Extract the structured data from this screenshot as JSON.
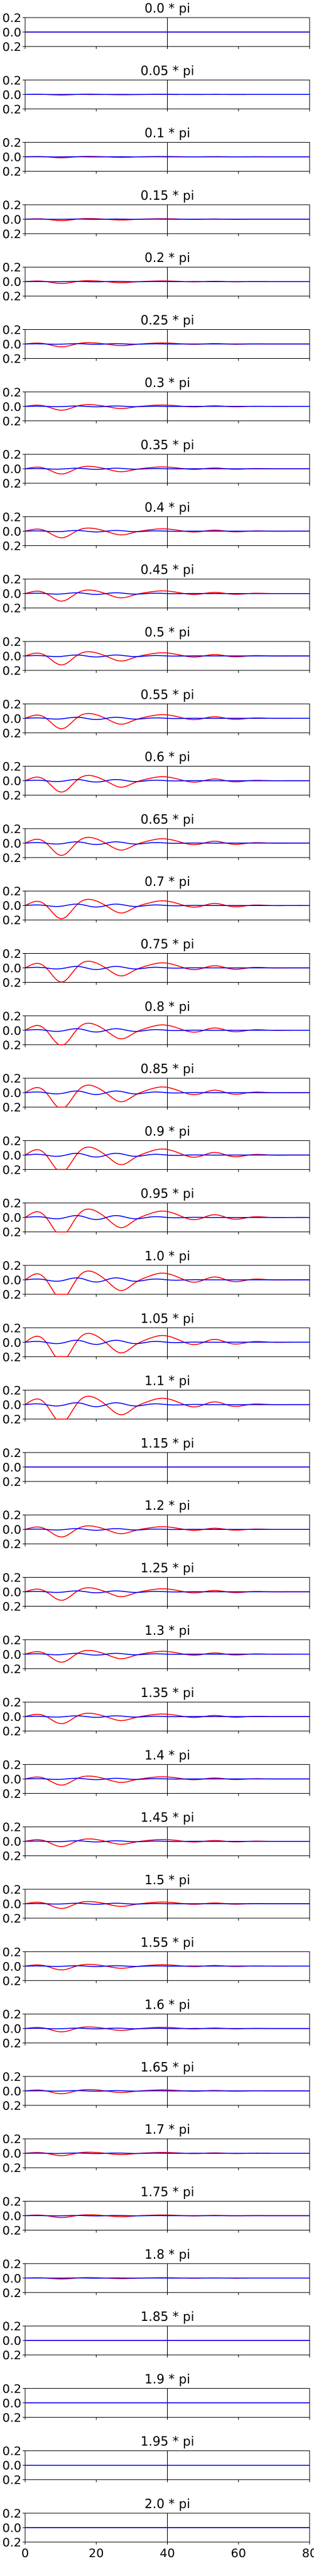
{
  "figure": {
    "x_ticks": [
      "0",
      "20",
      "40",
      "60",
      "80"
    ],
    "y_ticks": [
      "0.2",
      "0.0",
      "0.2"
    ],
    "colors": {
      "real": "#ff0000",
      "imag": "#0000ff",
      "axis": "#000000",
      "divider": "#000000"
    }
  },
  "chart_data": {
    "type": "line",
    "xlim": [
      0,
      80
    ],
    "ylim": [
      -0.2,
      0.2
    ],
    "grid": false,
    "legend": "none",
    "divider_x": 40,
    "subplots": [
      {
        "title": "0.0 * pi",
        "amp": 0.0
      },
      {
        "title": "0.05 * pi",
        "amp": 0.006
      },
      {
        "title": "0.1 * pi",
        "amp": 0.01
      },
      {
        "title": "0.15 * pi",
        "amp": 0.015
      },
      {
        "title": "0.2 * pi",
        "amp": 0.02
      },
      {
        "title": "0.25 * pi",
        "amp": 0.03
      },
      {
        "title": "0.3 * pi",
        "amp": 0.04
      },
      {
        "title": "0.35 * pi",
        "amp": 0.055
      },
      {
        "title": "0.4 * pi",
        "amp": 0.07
      },
      {
        "title": "0.45 * pi",
        "amp": 0.08
      },
      {
        "title": "0.5 * pi",
        "amp": 0.095
      },
      {
        "title": "0.55 * pi",
        "amp": 0.11
      },
      {
        "title": "0.6 * pi",
        "amp": 0.12
      },
      {
        "title": "0.65 * pi",
        "amp": 0.13
      },
      {
        "title": "0.7 * pi",
        "amp": 0.14
      },
      {
        "title": "0.75 * pi",
        "amp": 0.15
      },
      {
        "title": "0.8 * pi",
        "amp": 0.16
      },
      {
        "title": "0.85 * pi",
        "amp": 0.17
      },
      {
        "title": "0.9 * pi",
        "amp": 0.18
      },
      {
        "title": "0.95 * pi",
        "amp": 0.19
      },
      {
        "title": "1.0 * pi",
        "amp": 0.2
      },
      {
        "title": "1.05 * pi",
        "amp": 0.2
      },
      {
        "title": "1.1 * pi",
        "amp": 0.19
      },
      {
        "title": "1.15 * pi",
        "amp": 0.0
      },
      {
        "title": "1.2 * pi",
        "amp": 0.08
      },
      {
        "title": "1.25 * pi",
        "amp": 0.09
      },
      {
        "title": "1.3 * pi",
        "amp": 0.085
      },
      {
        "title": "1.35 * pi",
        "amp": 0.075
      },
      {
        "title": "1.4 * pi",
        "amp": 0.065
      },
      {
        "title": "1.45 * pi",
        "amp": 0.055
      },
      {
        "title": "1.5 * pi",
        "amp": 0.05
      },
      {
        "title": "1.55 * pi",
        "amp": 0.04
      },
      {
        "title": "1.6 * pi",
        "amp": 0.035
      },
      {
        "title": "1.65 * pi",
        "amp": 0.03
      },
      {
        "title": "1.7 * pi",
        "amp": 0.025
      },
      {
        "title": "1.75 * pi",
        "amp": 0.02
      },
      {
        "title": "1.8 * pi",
        "amp": 0.01
      },
      {
        "title": "1.85 * pi",
        "amp": 0.0
      },
      {
        "title": "1.9 * pi",
        "amp": 0.0
      },
      {
        "title": "1.95 * pi",
        "amp": 0.0
      },
      {
        "title": "2.0 * pi",
        "amp": 0.0
      }
    ]
  }
}
